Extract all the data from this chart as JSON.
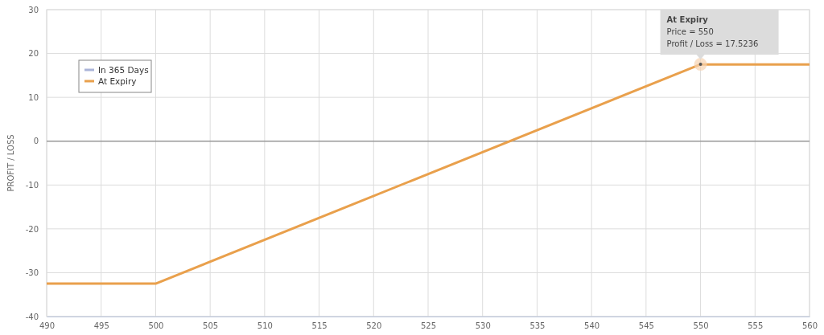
{
  "chart_data": {
    "type": "line",
    "ylabel": "PROFIT / LOSS",
    "x": [
      490,
      500,
      550,
      560
    ],
    "series": [
      {
        "name": "In 365 Days",
        "color": "#aab4d8",
        "values": [
          null,
          null,
          null,
          null
        ]
      },
      {
        "name": "At Expiry",
        "color": "#e9a04c",
        "values": [
          -32.5,
          -32.5,
          17.5,
          17.5
        ]
      }
    ],
    "xlim": [
      490,
      560
    ],
    "xticks": [
      490,
      495,
      500,
      505,
      510,
      515,
      520,
      525,
      530,
      535,
      540,
      545,
      550,
      555,
      560
    ],
    "ylim": [
      -40,
      30
    ],
    "yticks": [
      -40,
      -30,
      -20,
      -10,
      0,
      10,
      20,
      30
    ],
    "grid": true,
    "legend": "top left",
    "marker": "none",
    "line_style": "solid",
    "ref_lines": [
      {
        "axis": "y",
        "value": 0,
        "color": "#999999"
      }
    ],
    "annotations": [
      {
        "text": "At Expiry\nPrice = 550\nProfit / Loss = 17.5236",
        "x": 550,
        "y": 17.5236
      }
    ]
  }
}
